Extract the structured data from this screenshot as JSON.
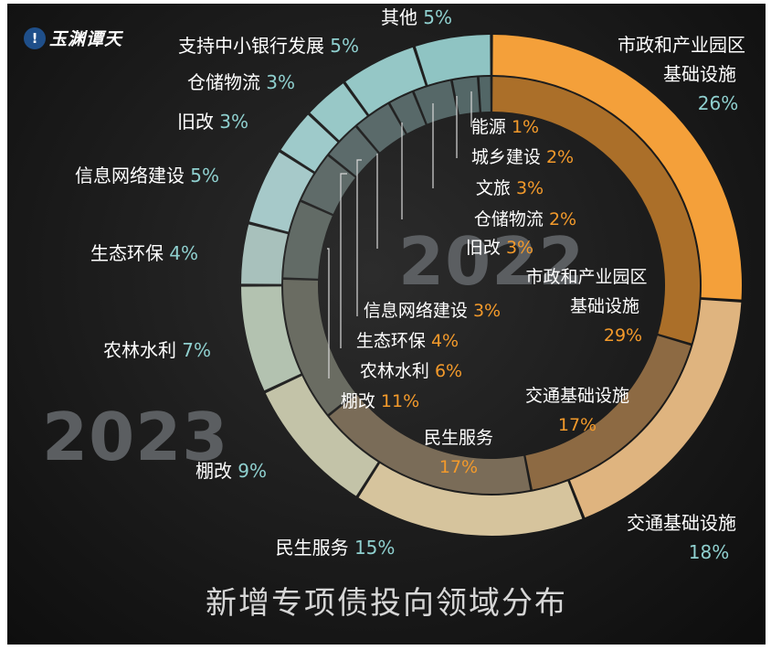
{
  "logo": {
    "text": "玉渊谭天"
  },
  "chart_data": {
    "type": "pie",
    "title": "新增专项债投向领域分布",
    "unit": "%",
    "rings": [
      {
        "name": "2023",
        "ring": "outer",
        "slices": [
          {
            "label": "市政和产业园区基础设施",
            "value": 26,
            "color": "#f4a03a"
          },
          {
            "label": "交通基础设施",
            "value": 18,
            "color": "#dfb47f"
          },
          {
            "label": "民生服务",
            "value": 15,
            "color": "#d6c49d"
          },
          {
            "label": "棚改",
            "value": 9,
            "color": "#c3c3a8"
          },
          {
            "label": "农林水利",
            "value": 7,
            "color": "#b3c2b0"
          },
          {
            "label": "生态环保",
            "value": 4,
            "color": "#a8c1bc"
          },
          {
            "label": "信息网络建设",
            "value": 5,
            "color": "#a6c9c9"
          },
          {
            "label": "旧改",
            "value": 3,
            "color": "#9ecaca"
          },
          {
            "label": "仓储物流",
            "value": 3,
            "color": "#98c8c7"
          },
          {
            "label": "支持中小银行发展",
            "value": 5,
            "color": "#95c7c6"
          },
          {
            "label": "其他",
            "value": 5,
            "color": "#8fc4c3"
          }
        ]
      },
      {
        "name": "2022",
        "ring": "inner",
        "slices": [
          {
            "label": "市政和产业园区基础设施",
            "value": 29,
            "color": "#ab6f29"
          },
          {
            "label": "交通基础设施",
            "value": 17,
            "color": "#8d6a43"
          },
          {
            "label": "民生服务",
            "value": 17,
            "color": "#7a6c58"
          },
          {
            "label": "棚改",
            "value": 11,
            "color": "#6a6c62"
          },
          {
            "label": "农林水利",
            "value": 6,
            "color": "#626b66"
          },
          {
            "label": "生态环保",
            "value": 4,
            "color": "#5f6b69"
          },
          {
            "label": "信息网络建设",
            "value": 3,
            "color": "#5c6b6b"
          },
          {
            "label": "旧改",
            "value": 3,
            "color": "#5a6a6a"
          },
          {
            "label": "仓储物流",
            "value": 2,
            "color": "#586969"
          },
          {
            "label": "文旅",
            "value": 3,
            "color": "#566868"
          },
          {
            "label": "城乡建设",
            "value": 2,
            "color": "#546767"
          },
          {
            "label": "能源",
            "value": 1,
            "color": "#526666"
          }
        ]
      }
    ],
    "legend": "none"
  },
  "labels": {
    "outer": [
      {
        "line1": "市政和产业园区",
        "line2": "基础设施",
        "pct": "26%"
      },
      {
        "line1": "交通基础设施",
        "pct": "18%"
      },
      {
        "line1": "民生服务",
        "pct": "15%"
      },
      {
        "line1": "棚改",
        "pct": "9%"
      },
      {
        "line1": "农林水利",
        "pct": "7%"
      },
      {
        "line1": "生态环保",
        "pct": "4%"
      },
      {
        "line1": "信息网络建设",
        "pct": "5%"
      },
      {
        "line1": "旧改",
        "pct": "3%"
      },
      {
        "line1": "仓储物流",
        "pct": "3%"
      },
      {
        "line1": "支持中小银行发展",
        "pct": "5%"
      },
      {
        "line1": "其他",
        "pct": "5%"
      }
    ],
    "inner": [
      {
        "line1": "市政和产业园区",
        "line2": "基础设施",
        "pct": "29%"
      },
      {
        "line1": "交通基础设施",
        "pct": "17%"
      },
      {
        "line1": "民生服务",
        "pct": "17%"
      },
      {
        "line1": "棚改",
        "pct": "11%"
      },
      {
        "line1": "农林水利",
        "pct": "6%"
      },
      {
        "line1": "生态环保",
        "pct": "4%"
      },
      {
        "line1": "信息网络建设",
        "pct": "3%"
      },
      {
        "line1": "旧改",
        "pct": "3%"
      },
      {
        "line1": "仓储物流",
        "pct": "2%"
      },
      {
        "line1": "文旅",
        "pct": "3%"
      },
      {
        "line1": "城乡建设",
        "pct": "2%"
      },
      {
        "line1": "能源",
        "pct": "1%"
      }
    ]
  },
  "years": {
    "outer": "2023",
    "inner": "2022"
  },
  "colors": {
    "outer_pct": "#8fd0cf",
    "inner_pct": "#f39a2b",
    "label_text": "#ffffff",
    "leader_line": "#d8d8d8"
  }
}
